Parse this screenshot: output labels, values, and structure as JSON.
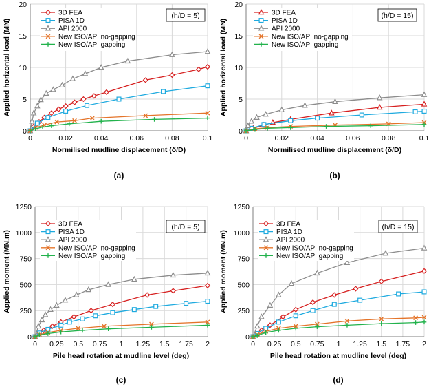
{
  "chart_data": [
    {
      "type": "line",
      "panel_label": "(a)",
      "annotation": "(h/D = 5)",
      "xlabel": "Normilised mudline displacement (δ/D)",
      "ylabel": "Applied horizontal load (MN)",
      "xlim": [
        0,
        0.1
      ],
      "ylim": [
        0,
        20
      ],
      "xticks": [
        0,
        0.02,
        0.04,
        0.06,
        0.08,
        0.1
      ],
      "xticklabels": [
        "0",
        "0.02",
        "0.04",
        "0.06",
        "0.08",
        "0.1"
      ],
      "yticks": [
        0,
        5,
        10,
        15,
        20
      ],
      "yticklabels": [
        "0",
        "5",
        "10",
        "15",
        "20"
      ],
      "grid": true,
      "legend_position": "top-left",
      "series": [
        {
          "name": "3D FEA",
          "color": "#d62020",
          "marker": "diamond",
          "x": [
            0,
            0.002,
            0.005,
            0.008,
            0.012,
            0.016,
            0.02,
            0.025,
            0.03,
            0.036,
            0.043,
            0.065,
            0.08,
            0.095,
            0.1
          ],
          "y": [
            0,
            0.7,
            1.4,
            2.1,
            2.8,
            3.4,
            3.9,
            4.5,
            5.0,
            5.5,
            6.1,
            8.0,
            8.8,
            9.7,
            10.1
          ]
        },
        {
          "name": "PISA 1D",
          "color": "#1eaadf",
          "marker": "square",
          "x": [
            0,
            0.004,
            0.01,
            0.02,
            0.032,
            0.05,
            0.075,
            0.1
          ],
          "y": [
            0,
            1.2,
            2.1,
            3.1,
            4.0,
            5.0,
            6.2,
            7.1
          ]
        },
        {
          "name": "API 2000",
          "color": "#8c8c8c",
          "marker": "triangle",
          "x": [
            0,
            0.001,
            0.002,
            0.004,
            0.006,
            0.009,
            0.013,
            0.018,
            0.024,
            0.031,
            0.04,
            0.055,
            0.08,
            0.1
          ],
          "y": [
            0,
            1.5,
            2.8,
            3.9,
            4.9,
            5.9,
            6.5,
            7.2,
            8.2,
            9.0,
            10.0,
            11.0,
            12.0,
            12.5
          ]
        },
        {
          "name": "New ISO/API no-gapping",
          "color": "#e4742a",
          "marker": "x",
          "x": [
            0,
            0.003,
            0.008,
            0.015,
            0.025,
            0.035,
            0.065,
            0.1
          ],
          "y": [
            0,
            0.5,
            0.9,
            1.4,
            1.6,
            2.0,
            2.4,
            2.8
          ]
        },
        {
          "name": "New ISO/API gapping",
          "color": "#22b24c",
          "marker": "plus",
          "x": [
            0,
            0.003,
            0.007,
            0.012,
            0.022,
            0.04,
            0.07,
            0.1
          ],
          "y": [
            0,
            0.3,
            0.6,
            0.8,
            1.1,
            1.5,
            1.8,
            2.0
          ]
        }
      ]
    },
    {
      "type": "line",
      "panel_label": "(b)",
      "annotation": "(h/D = 15)",
      "xlabel": "Normilised mudline displacement (δ/D)",
      "ylabel": "Applied horizontal load (MN)",
      "xlim": [
        0,
        0.1
      ],
      "ylim": [
        0,
        20
      ],
      "xticks": [
        0,
        0.02,
        0.04,
        0.06,
        0.08,
        0.1
      ],
      "xticklabels": [
        "0",
        "0.02",
        "0.04",
        "0.06",
        "0.08",
        "0.1"
      ],
      "yticks": [
        0,
        5,
        10,
        15,
        20
      ],
      "yticklabels": [
        "0",
        "5",
        "10",
        "15",
        "20"
      ],
      "grid": true,
      "legend_position": "top-left",
      "series": [
        {
          "name": "3D FEA",
          "color": "#d62020",
          "marker": "triangle",
          "x": [
            0,
            0.004,
            0.01,
            0.015,
            0.025,
            0.048,
            0.075,
            0.1
          ],
          "y": [
            0,
            0.4,
            0.9,
            1.3,
            1.8,
            2.8,
            3.7,
            4.2
          ]
        },
        {
          "name": "PISA 1D",
          "color": "#1eaadf",
          "marker": "square",
          "x": [
            0,
            0.003,
            0.01,
            0.025,
            0.04,
            0.065,
            0.095,
            0.1
          ],
          "y": [
            0,
            0.4,
            1.0,
            1.6,
            2.0,
            2.5,
            3.0,
            3.1
          ]
        },
        {
          "name": "API 2000",
          "color": "#8c8c8c",
          "marker": "triangle",
          "x": [
            0,
            0.001,
            0.003,
            0.006,
            0.011,
            0.02,
            0.033,
            0.05,
            0.075,
            0.1
          ],
          "y": [
            0,
            0.8,
            1.5,
            2.1,
            2.6,
            3.3,
            4.0,
            4.6,
            5.2,
            5.7
          ]
        },
        {
          "name": "New ISO/API no-gapping",
          "color": "#e4742a",
          "marker": "x",
          "x": [
            0,
            0.005,
            0.012,
            0.025,
            0.05,
            0.08,
            0.1
          ],
          "y": [
            0,
            0.3,
            0.5,
            0.7,
            0.9,
            1.1,
            1.3
          ]
        },
        {
          "name": "New ISO/API gapping",
          "color": "#22b24c",
          "marker": "plus",
          "x": [
            0,
            0.005,
            0.012,
            0.025,
            0.045,
            0.07,
            0.1
          ],
          "y": [
            0,
            0.2,
            0.4,
            0.5,
            0.7,
            0.8,
            1.0
          ]
        }
      ]
    },
    {
      "type": "line",
      "panel_label": "(c)",
      "annotation": "(h/D = 5)",
      "xlabel": "Pile head rotation at mudline level (deg)",
      "ylabel": "Applied moment (MN.m)",
      "xlim": [
        0,
        2
      ],
      "ylim": [
        0,
        1250
      ],
      "xticks": [
        0,
        0.25,
        0.5,
        0.75,
        1,
        1.25,
        1.5,
        1.75,
        2
      ],
      "xticklabels": [
        "0",
        "0.25",
        "0.5",
        "0.75",
        "1",
        "1.25",
        "1.5",
        "1.75",
        "2"
      ],
      "yticks": [
        0,
        250,
        500,
        750,
        1000,
        1250
      ],
      "yticklabels": [
        "0",
        "250",
        "500",
        "750",
        "1000",
        "1250"
      ],
      "grid": true,
      "legend_position": "top-left",
      "series": [
        {
          "name": "3D FEA",
          "color": "#d62020",
          "marker": "diamond",
          "x": [
            0,
            0.05,
            0.1,
            0.2,
            0.3,
            0.45,
            0.65,
            0.9,
            1.3,
            1.6,
            2.0
          ],
          "y": [
            0,
            30,
            60,
            100,
            140,
            190,
            250,
            310,
            400,
            440,
            490
          ]
        },
        {
          "name": "PISA 1D",
          "color": "#1eaadf",
          "marker": "square",
          "x": [
            0,
            0.05,
            0.15,
            0.3,
            0.4,
            0.55,
            0.7,
            0.9,
            1.15,
            1.4,
            1.75,
            2.0
          ],
          "y": [
            0,
            35,
            70,
            110,
            140,
            170,
            200,
            230,
            260,
            290,
            320,
            340
          ]
        },
        {
          "name": "API 2000",
          "color": "#8c8c8c",
          "marker": "triangle",
          "x": [
            0,
            0.04,
            0.08,
            0.12,
            0.18,
            0.25,
            0.35,
            0.48,
            0.62,
            0.85,
            1.15,
            1.6,
            2.0
          ],
          "y": [
            0,
            100,
            160,
            210,
            260,
            300,
            350,
            400,
            450,
            500,
            550,
            590,
            610
          ]
        },
        {
          "name": "New ISO/API no-gapping",
          "color": "#e4742a",
          "marker": "x",
          "x": [
            0,
            0.05,
            0.15,
            0.3,
            0.5,
            0.8,
            1.35,
            2.0
          ],
          "y": [
            0,
            20,
            40,
            60,
            80,
            100,
            120,
            140
          ]
        },
        {
          "name": "New ISO/API gapping",
          "color": "#22b24c",
          "marker": "plus",
          "x": [
            0,
            0.05,
            0.15,
            0.3,
            0.55,
            0.85,
            1.35,
            2.0
          ],
          "y": [
            0,
            15,
            30,
            45,
            60,
            75,
            90,
            110
          ]
        }
      ]
    },
    {
      "type": "line",
      "panel_label": "(d)",
      "annotation": "(h/D = 15)",
      "xlabel": "Pile head rotation at mudline level (deg)",
      "ylabel": "Applied moment (MN.m)",
      "xlim": [
        0,
        2
      ],
      "ylim": [
        0,
        1250
      ],
      "xticks": [
        0,
        0.25,
        0.5,
        0.75,
        1,
        1.25,
        1.5,
        1.75,
        2
      ],
      "xticklabels": [
        "0",
        "0.25",
        "0.5",
        "0.75",
        "1",
        "1.25",
        "1.5",
        "1.75",
        "2"
      ],
      "yticks": [
        0,
        250,
        500,
        750,
        1000,
        1250
      ],
      "yticklabels": [
        "0",
        "250",
        "500",
        "750",
        "1000",
        "1250"
      ],
      "grid": true,
      "legend_position": "top-left",
      "series": [
        {
          "name": "3D FEA",
          "color": "#d62020",
          "marker": "diamond",
          "x": [
            0,
            0.1,
            0.2,
            0.35,
            0.5,
            0.7,
            0.95,
            1.2,
            1.5,
            2.0
          ],
          "y": [
            0,
            60,
            110,
            190,
            260,
            330,
            400,
            460,
            530,
            630
          ]
        },
        {
          "name": "PISA 1D",
          "color": "#1eaadf",
          "marker": "square",
          "x": [
            0,
            0.05,
            0.15,
            0.3,
            0.5,
            0.7,
            0.95,
            1.25,
            1.7,
            2.0
          ],
          "y": [
            0,
            30,
            80,
            140,
            200,
            250,
            310,
            350,
            410,
            430
          ]
        },
        {
          "name": "API 2000",
          "color": "#8c8c8c",
          "marker": "triangle",
          "x": [
            0,
            0.05,
            0.1,
            0.2,
            0.3,
            0.45,
            0.75,
            1.1,
            1.55,
            2.0
          ],
          "y": [
            0,
            100,
            190,
            300,
            400,
            510,
            610,
            710,
            800,
            850
          ]
        },
        {
          "name": "New ISO/API no-gapping",
          "color": "#e4742a",
          "marker": "x",
          "x": [
            0,
            0.05,
            0.15,
            0.3,
            0.5,
            0.75,
            1.1,
            1.5,
            1.9,
            2.0
          ],
          "y": [
            0,
            20,
            50,
            80,
            100,
            120,
            150,
            170,
            180,
            185
          ]
        },
        {
          "name": "New ISO/API gapping",
          "color": "#22b24c",
          "marker": "plus",
          "x": [
            0,
            0.05,
            0.15,
            0.3,
            0.5,
            0.75,
            1.1,
            1.5,
            1.9,
            2.0
          ],
          "y": [
            0,
            10,
            40,
            60,
            80,
            95,
            110,
            125,
            135,
            140
          ]
        }
      ]
    }
  ]
}
